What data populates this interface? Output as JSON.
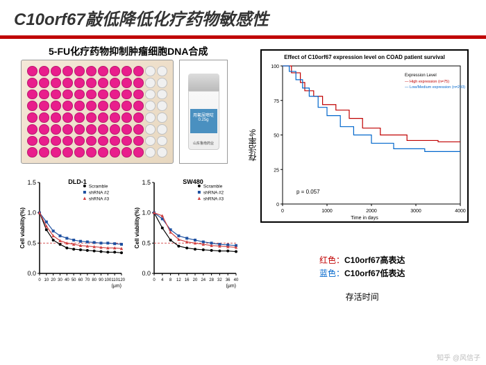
{
  "title": {
    "gene": "C10orf67",
    "rest": "敲低降低化疗药物敏感性"
  },
  "subtitle": "5-FU化疗药物抑制肿瘤细胞DNA合成",
  "plate": {
    "rows": 8,
    "cols": 12,
    "well_color": "#e91e8c",
    "empty_color": "#f0f0f0"
  },
  "vial": {
    "label": "用氟尿嘧啶",
    "dose": "0.25g",
    "mfr": "山东鲁南药业"
  },
  "dld1": {
    "title": "DLD-1",
    "ylabel": "Cell viability(%)",
    "xlabel_suffix": "(μm)",
    "xlim": [
      0,
      120
    ],
    "ylim": [
      0,
      1.5
    ],
    "xticks": [
      0,
      10,
      20,
      30,
      40,
      50,
      60,
      70,
      80,
      90,
      100,
      110,
      120
    ],
    "yticks": [
      0,
      0.5,
      1.0,
      1.5
    ],
    "threshold": 0.5,
    "series": [
      {
        "name": "Scramble",
        "color": "#000000",
        "marker": "circle",
        "x": [
          0,
          10,
          20,
          30,
          40,
          50,
          60,
          70,
          80,
          90,
          100,
          110,
          120
        ],
        "y": [
          1.0,
          0.72,
          0.55,
          0.48,
          0.42,
          0.4,
          0.39,
          0.38,
          0.37,
          0.36,
          0.35,
          0.35,
          0.34
        ]
      },
      {
        "name": "shRNA #2",
        "color": "#1e50a0",
        "marker": "square",
        "x": [
          0,
          10,
          20,
          30,
          40,
          50,
          60,
          70,
          80,
          90,
          100,
          110,
          120
        ],
        "y": [
          1.0,
          0.85,
          0.7,
          0.62,
          0.58,
          0.55,
          0.53,
          0.52,
          0.51,
          0.5,
          0.5,
          0.49,
          0.48
        ]
      },
      {
        "name": "shRNA #3",
        "color": "#d04040",
        "marker": "triangle",
        "x": [
          0,
          10,
          20,
          30,
          40,
          50,
          60,
          70,
          80,
          90,
          100,
          110,
          120
        ],
        "y": [
          1.0,
          0.78,
          0.62,
          0.54,
          0.5,
          0.48,
          0.46,
          0.45,
          0.44,
          0.43,
          0.42,
          0.42,
          0.41
        ]
      }
    ]
  },
  "sw480": {
    "title": "SW480",
    "ylabel": "Cell viability(%)",
    "xlabel_suffix": "(μm)",
    "xlim": [
      0,
      40
    ],
    "ylim": [
      0,
      1.5
    ],
    "xticks": [
      0,
      4,
      8,
      12,
      16,
      20,
      24,
      28,
      32,
      36,
      40
    ],
    "yticks": [
      0,
      0.5,
      1.0,
      1.5
    ],
    "threshold": 0.5,
    "series": [
      {
        "name": "Scramble",
        "color": "#000000",
        "marker": "circle",
        "x": [
          0,
          4,
          8,
          12,
          16,
          20,
          24,
          28,
          32,
          36,
          40
        ],
        "y": [
          1.0,
          0.75,
          0.55,
          0.45,
          0.42,
          0.4,
          0.39,
          0.38,
          0.37,
          0.37,
          0.36
        ]
      },
      {
        "name": "shRNA #2",
        "color": "#1e50a0",
        "marker": "square",
        "x": [
          0,
          4,
          8,
          12,
          16,
          20,
          24,
          28,
          32,
          36,
          40
        ],
        "y": [
          1.0,
          0.9,
          0.72,
          0.62,
          0.58,
          0.55,
          0.52,
          0.5,
          0.48,
          0.47,
          0.46
        ]
      },
      {
        "name": "shRNA #3",
        "color": "#d04040",
        "marker": "triangle",
        "x": [
          0,
          4,
          8,
          12,
          16,
          20,
          24,
          28,
          32,
          36,
          40
        ],
        "y": [
          1.0,
          0.95,
          0.68,
          0.56,
          0.52,
          0.5,
          0.48,
          0.46,
          0.45,
          0.44,
          0.43
        ]
      }
    ]
  },
  "survival": {
    "title": "Effect of C10orf67 expression level on COAD patient survival",
    "xlabel": "Time in days",
    "ylabel": "存活率%",
    "xlim": [
      0,
      4000
    ],
    "ylim": [
      0,
      100
    ],
    "xticks": [
      0,
      1000,
      2000,
      3000,
      4000
    ],
    "yticks": [
      0,
      25,
      50,
      75,
      100
    ],
    "p_value": "p = 0.057",
    "legend_title": "Expression Level",
    "legend_items": [
      "High expression (n=75)",
      "Low/Medium expression (n=293)"
    ],
    "series": [
      {
        "name": "High",
        "color": "#c00000",
        "x": [
          0,
          200,
          400,
          500,
          700,
          900,
          1200,
          1500,
          1800,
          2200,
          2800,
          3500,
          4000
        ],
        "y": [
          100,
          95,
          88,
          82,
          78,
          72,
          68,
          62,
          55,
          50,
          46,
          45,
          45
        ]
      },
      {
        "name": "Low",
        "color": "#0066cc",
        "x": [
          0,
          150,
          300,
          450,
          600,
          800,
          1000,
          1300,
          1600,
          2000,
          2500,
          3200,
          4000
        ],
        "y": [
          100,
          96,
          90,
          84,
          78,
          70,
          64,
          56,
          50,
          44,
          40,
          38,
          38
        ]
      }
    ]
  },
  "legend_text": {
    "red": "红色：",
    "red_desc": "C10orf67高表达",
    "blue": "蓝色：",
    "blue_desc": "C10orf67低表达",
    "time": "存活时间"
  },
  "watermark": "知乎 @风信子"
}
